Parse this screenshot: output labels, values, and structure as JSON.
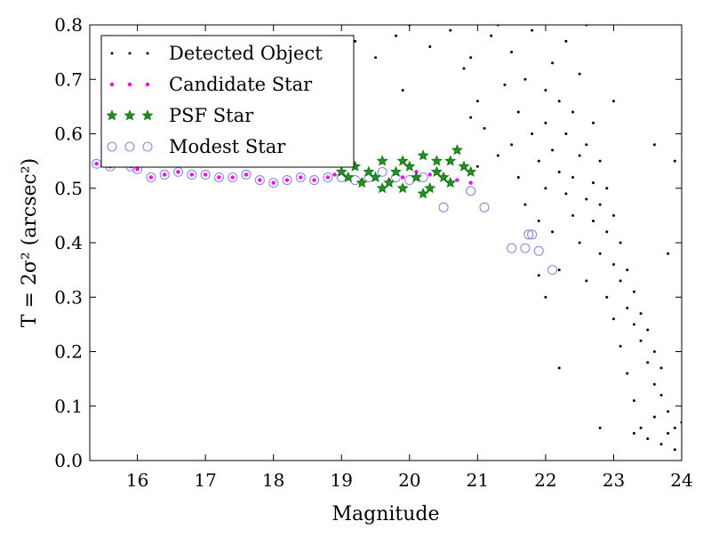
{
  "chart_data": {
    "type": "scatter",
    "title": "",
    "xlabel": "Magnitude",
    "ylabel": "T = 2σ² (arcsec²)",
    "xlim": [
      15.3,
      24
    ],
    "ylim": [
      0.0,
      0.8
    ],
    "xticks": [
      16,
      17,
      18,
      19,
      20,
      21,
      22,
      23,
      24
    ],
    "yticks": [
      0.0,
      0.1,
      0.2,
      0.3,
      0.4,
      0.5,
      0.6,
      0.7,
      0.8
    ],
    "xtick_labels": [
      "16",
      "17",
      "18",
      "19",
      "20",
      "21",
      "22",
      "23",
      "24"
    ],
    "ytick_labels": [
      "0.0",
      "0.1",
      "0.2",
      "0.3",
      "0.4",
      "0.5",
      "0.6",
      "0.7",
      "0.8"
    ],
    "grid": false,
    "legend_position": "top-left",
    "series": [
      {
        "name": "Detected Object",
        "marker": "dot",
        "color": "#000000",
        "points": [
          [
            19.2,
            0.77
          ],
          [
            19.5,
            0.74
          ],
          [
            19.8,
            0.78
          ],
          [
            20.0,
            0.8
          ],
          [
            20.3,
            0.76
          ],
          [
            20.6,
            0.79
          ],
          [
            20.8,
            0.72
          ],
          [
            20.9,
            0.74
          ],
          [
            21.0,
            0.66
          ],
          [
            21.0,
            0.54
          ],
          [
            21.1,
            0.61
          ],
          [
            21.2,
            0.78
          ],
          [
            21.3,
            0.56
          ],
          [
            21.4,
            0.69
          ],
          [
            21.5,
            0.58
          ],
          [
            21.5,
            0.75
          ],
          [
            21.6,
            0.52
          ],
          [
            21.6,
            0.64
          ],
          [
            21.7,
            0.7
          ],
          [
            21.7,
            0.47
          ],
          [
            21.8,
            0.6
          ],
          [
            21.8,
            0.79
          ],
          [
            21.9,
            0.55
          ],
          [
            21.9,
            0.44
          ],
          [
            22.0,
            0.68
          ],
          [
            22.0,
            0.62
          ],
          [
            22.0,
            0.5
          ],
          [
            22.1,
            0.57
          ],
          [
            22.1,
            0.42
          ],
          [
            22.1,
            0.73
          ],
          [
            22.2,
            0.53
          ],
          [
            22.2,
            0.66
          ],
          [
            22.2,
            0.35
          ],
          [
            22.3,
            0.49
          ],
          [
            22.3,
            0.6
          ],
          [
            22.3,
            0.77
          ],
          [
            22.4,
            0.52
          ],
          [
            22.4,
            0.45
          ],
          [
            22.4,
            0.64
          ],
          [
            22.5,
            0.56
          ],
          [
            22.5,
            0.4
          ],
          [
            22.5,
            0.71
          ],
          [
            22.6,
            0.48
          ],
          [
            22.6,
            0.58
          ],
          [
            22.6,
            0.33
          ],
          [
            22.7,
            0.51
          ],
          [
            22.7,
            0.44
          ],
          [
            22.7,
            0.62
          ],
          [
            22.8,
            0.47
          ],
          [
            22.8,
            0.38
          ],
          [
            22.8,
            0.55
          ],
          [
            22.9,
            0.42
          ],
          [
            22.9,
            0.3
          ],
          [
            22.9,
            0.5
          ],
          [
            23.0,
            0.36
          ],
          [
            23.0,
            0.45
          ],
          [
            23.0,
            0.26
          ],
          [
            23.1,
            0.33
          ],
          [
            23.1,
            0.4
          ],
          [
            23.1,
            0.21
          ],
          [
            23.2,
            0.28
          ],
          [
            23.2,
            0.35
          ],
          [
            23.2,
            0.16
          ],
          [
            23.3,
            0.25
          ],
          [
            23.3,
            0.31
          ],
          [
            23.3,
            0.11
          ],
          [
            23.4,
            0.22
          ],
          [
            23.4,
            0.27
          ],
          [
            23.4,
            0.06
          ],
          [
            23.5,
            0.18
          ],
          [
            23.5,
            0.24
          ],
          [
            23.5,
            0.04
          ],
          [
            23.6,
            0.14
          ],
          [
            23.6,
            0.2
          ],
          [
            23.6,
            0.08
          ],
          [
            23.7,
            0.12
          ],
          [
            23.7,
            0.17
          ],
          [
            23.7,
            0.03
          ],
          [
            23.8,
            0.09
          ],
          [
            23.8,
            0.05
          ],
          [
            23.9,
            0.06
          ],
          [
            23.9,
            0.02
          ],
          [
            22.2,
            0.17
          ],
          [
            22.8,
            0.06
          ],
          [
            23.3,
            0.05
          ],
          [
            21.9,
            0.34
          ],
          [
            24.0,
            0.07
          ],
          [
            22.0,
            0.3
          ],
          [
            20.9,
            0.63
          ],
          [
            19.9,
            0.68
          ],
          [
            21.3,
            0.8
          ],
          [
            22.6,
            0.8
          ],
          [
            23.0,
            0.66
          ],
          [
            23.6,
            0.58
          ],
          [
            23.9,
            0.55
          ],
          [
            23.8,
            0.38
          ]
        ]
      },
      {
        "name": "Candidate Star",
        "marker": "circle",
        "color": "#ff00ff",
        "points": [
          [
            15.4,
            0.545
          ],
          [
            15.6,
            0.54
          ],
          [
            15.9,
            0.54
          ],
          [
            16.0,
            0.535
          ],
          [
            16.2,
            0.52
          ],
          [
            16.4,
            0.525
          ],
          [
            16.6,
            0.53
          ],
          [
            16.8,
            0.525
          ],
          [
            17.0,
            0.525
          ],
          [
            17.2,
            0.52
          ],
          [
            17.4,
            0.52
          ],
          [
            17.6,
            0.525
          ],
          [
            17.8,
            0.515
          ],
          [
            18.0,
            0.51
          ],
          [
            18.2,
            0.515
          ],
          [
            18.4,
            0.52
          ],
          [
            18.6,
            0.515
          ],
          [
            18.8,
            0.52
          ],
          [
            18.9,
            0.525
          ],
          [
            19.1,
            0.52
          ],
          [
            19.3,
            0.515
          ],
          [
            19.5,
            0.52
          ],
          [
            19.7,
            0.515
          ],
          [
            19.9,
            0.52
          ],
          [
            20.1,
            0.53
          ],
          [
            20.3,
            0.525
          ],
          [
            20.5,
            0.52
          ],
          [
            20.7,
            0.515
          ],
          [
            20.9,
            0.51
          ]
        ]
      },
      {
        "name": "PSF Star",
        "marker": "star",
        "color": "#008000",
        "points": [
          [
            19.0,
            0.53
          ],
          [
            19.1,
            0.52
          ],
          [
            19.2,
            0.54
          ],
          [
            19.3,
            0.51
          ],
          [
            19.4,
            0.53
          ],
          [
            19.5,
            0.52
          ],
          [
            19.6,
            0.55
          ],
          [
            19.7,
            0.51
          ],
          [
            19.8,
            0.53
          ],
          [
            19.9,
            0.5
          ],
          [
            20.0,
            0.54
          ],
          [
            20.1,
            0.52
          ],
          [
            20.2,
            0.56
          ],
          [
            20.3,
            0.5
          ],
          [
            20.4,
            0.53
          ],
          [
            20.5,
            0.52
          ],
          [
            20.6,
            0.55
          ],
          [
            20.7,
            0.57
          ],
          [
            20.8,
            0.54
          ],
          [
            20.9,
            0.53
          ],
          [
            20.6,
            0.51
          ],
          [
            20.4,
            0.55
          ],
          [
            20.2,
            0.49
          ],
          [
            19.9,
            0.55
          ],
          [
            19.6,
            0.5
          ]
        ]
      },
      {
        "name": "Modest Star",
        "marker": "ring",
        "color": "#8888ee",
        "points": [
          [
            15.4,
            0.545
          ],
          [
            15.6,
            0.54
          ],
          [
            15.9,
            0.54
          ],
          [
            16.0,
            0.535
          ],
          [
            16.2,
            0.52
          ],
          [
            16.4,
            0.525
          ],
          [
            16.6,
            0.53
          ],
          [
            16.8,
            0.525
          ],
          [
            17.0,
            0.525
          ],
          [
            17.2,
            0.52
          ],
          [
            17.4,
            0.52
          ],
          [
            17.6,
            0.525
          ],
          [
            17.8,
            0.515
          ],
          [
            18.0,
            0.51
          ],
          [
            18.2,
            0.515
          ],
          [
            18.4,
            0.52
          ],
          [
            18.6,
            0.515
          ],
          [
            18.8,
            0.52
          ],
          [
            19.0,
            0.52
          ],
          [
            19.2,
            0.515
          ],
          [
            19.4,
            0.52
          ],
          [
            19.6,
            0.53
          ],
          [
            19.8,
            0.52
          ],
          [
            20.0,
            0.515
          ],
          [
            20.2,
            0.52
          ],
          [
            20.5,
            0.465
          ],
          [
            20.9,
            0.495
          ],
          [
            21.1,
            0.465
          ],
          [
            21.5,
            0.39
          ],
          [
            21.7,
            0.39
          ],
          [
            21.8,
            0.415
          ],
          [
            21.9,
            0.385
          ],
          [
            21.75,
            0.415
          ],
          [
            22.1,
            0.35
          ]
        ]
      }
    ]
  }
}
